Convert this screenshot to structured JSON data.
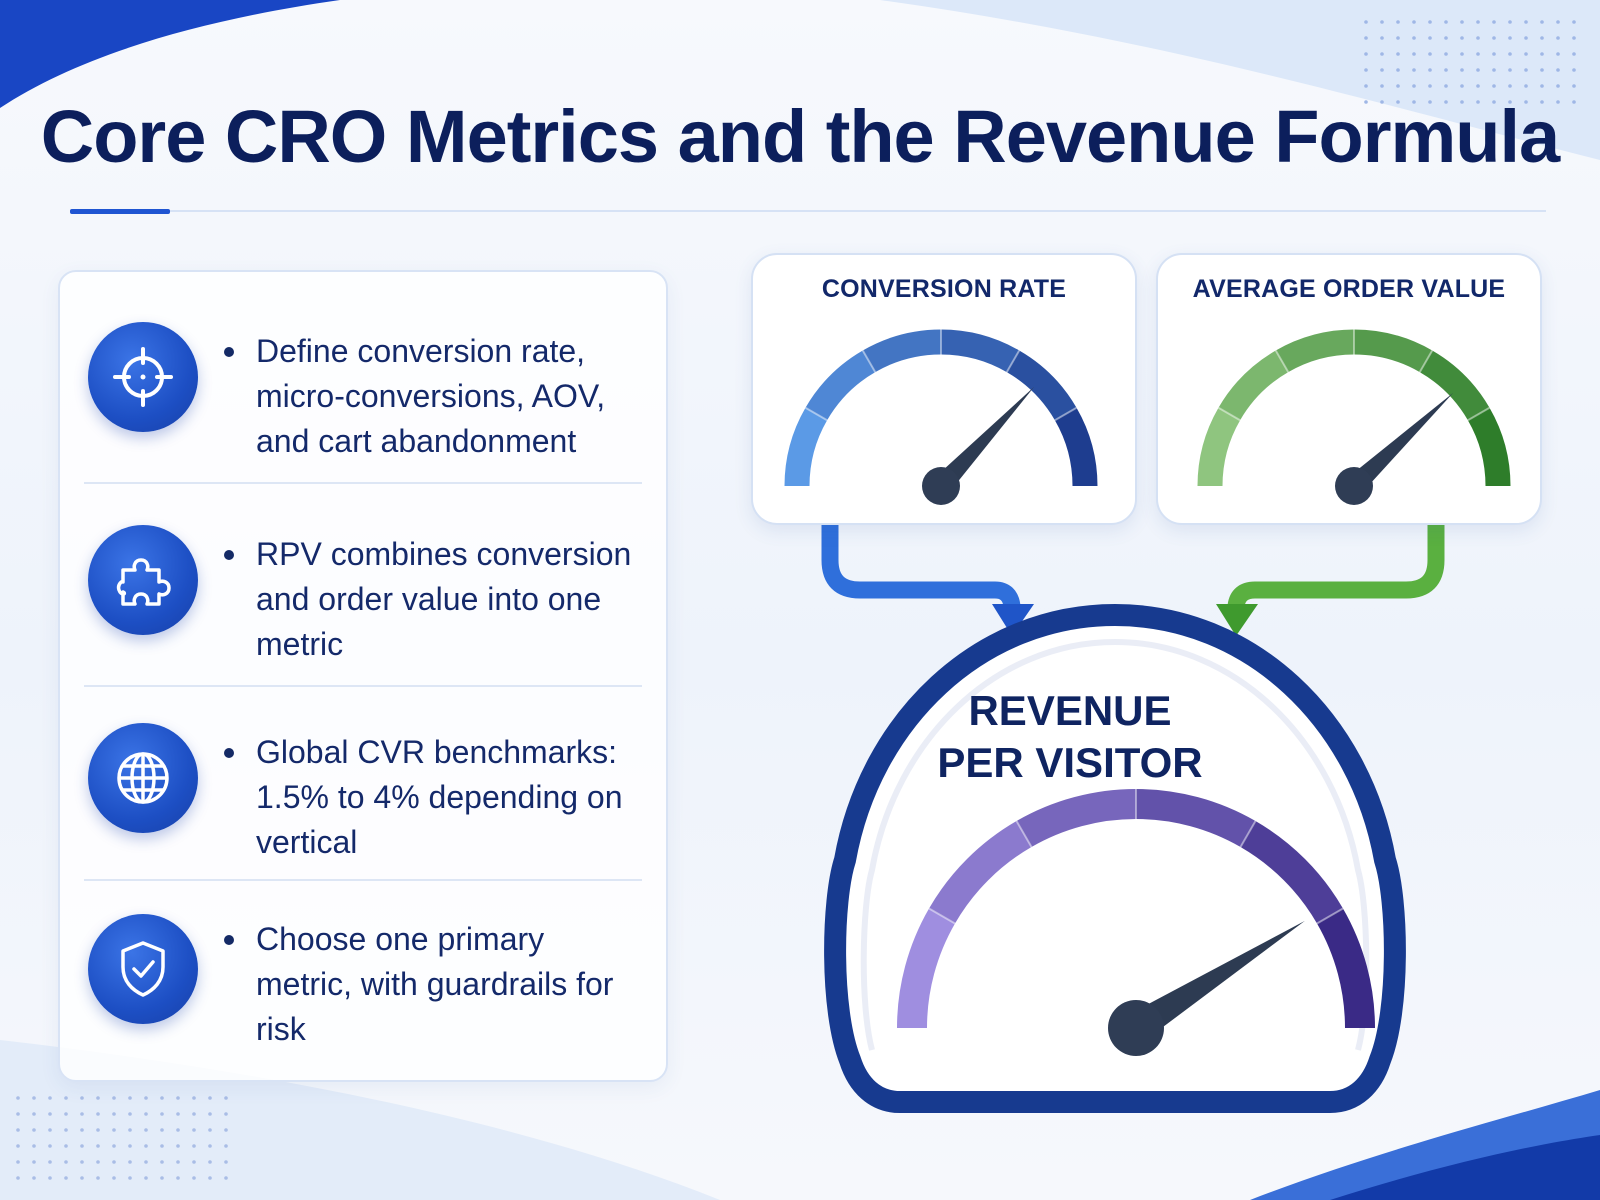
{
  "title": "Core CRO Metrics and the Revenue Formula",
  "colors": {
    "navy": "#0c1f5c",
    "accent_blue": "#1f55d2",
    "conversion_gauge": [
      "#5b9ae6",
      "#1e3d8f"
    ],
    "aov_gauge": [
      "#8fc57f",
      "#2e7d2a"
    ],
    "rpv_gauge": [
      "#9f8ee0",
      "#3a2a86"
    ]
  },
  "items": [
    {
      "icon": "target-crosshair-icon",
      "text": "Define conversion rate, micro-conversions, AOV, and cart abandonment"
    },
    {
      "icon": "puzzle-piece-icon",
      "text": "RPV combines conversion and order value into one metric"
    },
    {
      "icon": "globe-icon",
      "text": "Global CVR benchmarks: 1.5% to 4% depending on vertical"
    },
    {
      "icon": "shield-check-icon",
      "text": "Choose one primary metric, with guardrails for risk"
    }
  ],
  "gauges": {
    "conversion_rate": {
      "label": "CONVERSION RATE",
      "level": 0.74
    },
    "average_order_value": {
      "label": "AVERAGE ORDER VALUE",
      "level": 0.76
    },
    "revenue_per_visitor": {
      "label_line1": "REVENUE",
      "label_line2": "PER VISITOR",
      "level": 0.82
    }
  }
}
